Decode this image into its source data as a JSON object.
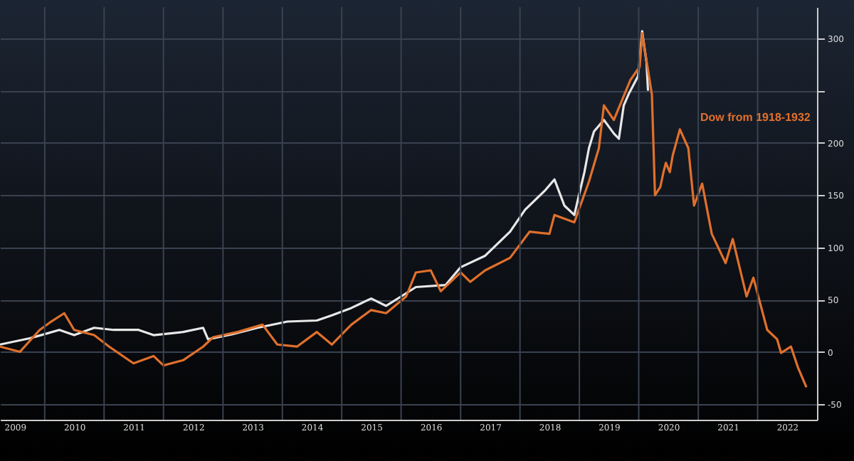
{
  "chart_data": {
    "type": "line",
    "annotations": [
      "Dow from 1918-1932"
    ],
    "xlim": [
      "2009-04",
      "2023-01"
    ],
    "xticks": [
      {
        "value": "2009-07-01",
        "label": "2009"
      },
      {
        "value": "2010-01-01",
        "label": null
      },
      {
        "value": "2010-07-01",
        "label": "2010"
      },
      {
        "value": "2011-01-01",
        "label": null
      },
      {
        "value": "2011-07-01",
        "label": "2011"
      },
      {
        "value": "2012-01-01",
        "label": null
      },
      {
        "value": "2012-07-01",
        "label": "2012"
      },
      {
        "value": "2013-01-01",
        "label": null
      },
      {
        "value": "2013-07-01",
        "label": "2013"
      },
      {
        "value": "2014-01-01",
        "label": null
      },
      {
        "value": "2014-07-01",
        "label": "2014"
      },
      {
        "value": "2015-01-01",
        "label": null
      },
      {
        "value": "2015-07-01",
        "label": "2015"
      },
      {
        "value": "2016-01-01",
        "label": null
      },
      {
        "value": "2016-07-01",
        "label": "2016"
      },
      {
        "value": "2017-01-01",
        "label": null
      },
      {
        "value": "2017-07-01",
        "label": "2017"
      },
      {
        "value": "2018-01-01",
        "label": null
      },
      {
        "value": "2018-07-01",
        "label": "2018"
      },
      {
        "value": "2019-01-01",
        "label": null
      },
      {
        "value": "2019-07-01",
        "label": "2019"
      },
      {
        "value": "2020-01-01",
        "label": null
      },
      {
        "value": "2020-07-01",
        "label": "2020"
      },
      {
        "value": "2021-01-01",
        "label": null
      },
      {
        "value": "2021-07-01",
        "label": "2021"
      },
      {
        "value": "2022-01-01",
        "label": null
      },
      {
        "value": "2022-07-01",
        "label": "2022"
      }
    ],
    "ylim": [
      -65,
      330
    ],
    "yticks": [
      -50,
      0,
      50,
      100,
      150,
      200,
      {
        "value": 250,
        "label": null
      },
      300
    ],
    "grid": true,
    "series": [
      {
        "color": "#e8e8e8",
        "x": [
          "2009-04",
          "2009-10",
          "2010-01",
          "2010-04",
          "2010-07",
          "2010-11",
          "2011-03",
          "2011-08",
          "2011-11",
          "2012-05",
          "2012-09",
          "2012-10",
          "2013-03",
          "2013-08",
          "2014-02",
          "2014-08",
          "2014-11",
          "2015-03",
          "2015-07",
          "2015-10",
          "2016-01",
          "2016-04",
          "2016-10",
          "2017-01",
          "2017-06",
          "2017-11",
          "2018-02",
          "2018-06",
          "2018-08",
          "2018-10",
          "2018-12",
          "2019-02",
          "2019-03",
          "2019-04",
          "2019-06",
          "2019-08",
          "2019-09",
          "2019-10",
          "2019-11",
          "2019-12-28",
          "2020-01-22",
          "2020-02-18",
          "2020-02-27"
        ],
        "values": [
          7,
          13,
          17,
          21,
          16,
          23,
          21,
          21,
          16,
          19,
          23,
          12,
          17,
          23,
          29,
          30,
          35,
          42,
          51,
          44,
          53,
          62,
          64,
          81,
          92,
          115,
          136,
          154,
          165,
          140,
          131,
          172,
          195,
          211,
          222,
          209,
          204,
          236,
          247,
          264,
          307,
          277,
          250
        ]
      },
      {
        "color": "#e0702c",
        "x": [
          "2009-04",
          "2009-08",
          "2009-12",
          "2010-02",
          "2010-05",
          "2010-07",
          "2010-11",
          "2011-02",
          "2011-07",
          "2011-11",
          "2012-01",
          "2012-05",
          "2012-09",
          "2012-11",
          "2013-04",
          "2013-09",
          "2013-12",
          "2014-04",
          "2014-08",
          "2014-11",
          "2015-03",
          "2015-07",
          "2015-10",
          "2016-02",
          "2016-04",
          "2016-07",
          "2016-09",
          "2017-01",
          "2017-03",
          "2017-06",
          "2017-11",
          "2018-03",
          "2018-07",
          "2018-08",
          "2018-12",
          "2019-03",
          "2019-05",
          "2019-06",
          "2019-08",
          "2019-11-10",
          "2020-01-07",
          "2020-01-22",
          "2020-03-04",
          "2020-03-22",
          "2020-04-10",
          "2020-05-13",
          "2020-06-01",
          "2020-06-16",
          "2020-07-10",
          "2020-07-28",
          "2020-09-10",
          "2020-11-01",
          "2020-12-06",
          "2021-01-25",
          "2021-03-25",
          "2021-06-18",
          "2021-08-01",
          "2021-10-25",
          "2021-12-06",
          "2022-03-01",
          "2022-05-01",
          "2022-05-25",
          "2022-07-25",
          "2022-09-06",
          "2022-10-28"
        ],
        "values": [
          5,
          0,
          21,
          28,
          37,
          21,
          16,
          5,
          -11,
          -4,
          -13,
          -8,
          5,
          14,
          19,
          26,
          7,
          5,
          19,
          7,
          26,
          40,
          37,
          53,
          76,
          78,
          58,
          76,
          67,
          78,
          90,
          115,
          113,
          131,
          124,
          163,
          195,
          236,
          222,
          260,
          273,
          305,
          264,
          246,
          150,
          158,
          172,
          181,
          172,
          188,
          213,
          195,
          140,
          161,
          113,
          85,
          108,
          53,
          71,
          21,
          12,
          -1,
          5,
          -15,
          -34
        ]
      }
    ]
  }
}
